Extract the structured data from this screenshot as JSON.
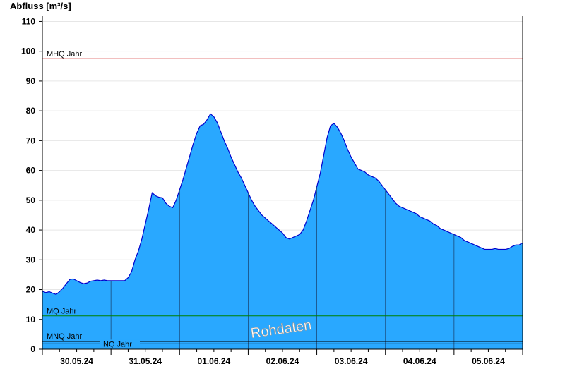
{
  "chart_data": {
    "type": "area",
    "ylabel": "Abfluss [m³/s]",
    "xlabel": "",
    "ylim": [
      0,
      112
    ],
    "y_ticks": [
      0,
      10,
      20,
      30,
      40,
      50,
      60,
      70,
      80,
      90,
      100,
      110
    ],
    "grid": true,
    "x_tick_labels": [
      "30.05.24",
      "31.05.24",
      "01.06.24",
      "02.06.24",
      "03.06.24",
      "04.06.24",
      "05.06.24"
    ],
    "x_range_days": [
      0,
      7
    ],
    "series": [
      {
        "fill_color": "#29a8ff",
        "line_color": "#0000cc",
        "points": [
          [
            0.0,
            19.5
          ],
          [
            0.05,
            19.0
          ],
          [
            0.1,
            19.3
          ],
          [
            0.15,
            18.8
          ],
          [
            0.2,
            18.4
          ],
          [
            0.25,
            19.3
          ],
          [
            0.3,
            20.5
          ],
          [
            0.35,
            22.0
          ],
          [
            0.4,
            23.4
          ],
          [
            0.45,
            23.6
          ],
          [
            0.5,
            23.0
          ],
          [
            0.55,
            22.4
          ],
          [
            0.6,
            22.0
          ],
          [
            0.65,
            22.2
          ],
          [
            0.7,
            22.8
          ],
          [
            0.75,
            23.0
          ],
          [
            0.8,
            23.2
          ],
          [
            0.85,
            23.0
          ],
          [
            0.9,
            23.2
          ],
          [
            0.95,
            23.0
          ],
          [
            1.0,
            23.0
          ],
          [
            1.1,
            23.0
          ],
          [
            1.2,
            23.0
          ],
          [
            1.25,
            24.0
          ],
          [
            1.3,
            26.0
          ],
          [
            1.35,
            30.0
          ],
          [
            1.4,
            33.0
          ],
          [
            1.45,
            37.0
          ],
          [
            1.5,
            42.0
          ],
          [
            1.55,
            47.0
          ],
          [
            1.6,
            52.5
          ],
          [
            1.65,
            51.5
          ],
          [
            1.7,
            51.0
          ],
          [
            1.75,
            50.8
          ],
          [
            1.8,
            49.0
          ],
          [
            1.85,
            48.0
          ],
          [
            1.9,
            47.5
          ],
          [
            1.95,
            50.0
          ],
          [
            2.0,
            53.5
          ],
          [
            2.05,
            57.0
          ],
          [
            2.1,
            61.0
          ],
          [
            2.15,
            65.0
          ],
          [
            2.2,
            69.0
          ],
          [
            2.25,
            72.5
          ],
          [
            2.3,
            75.0
          ],
          [
            2.35,
            75.5
          ],
          [
            2.4,
            77.0
          ],
          [
            2.45,
            79.0
          ],
          [
            2.5,
            78.0
          ],
          [
            2.55,
            76.0
          ],
          [
            2.6,
            73.0
          ],
          [
            2.65,
            70.0
          ],
          [
            2.7,
            67.5
          ],
          [
            2.75,
            64.5
          ],
          [
            2.8,
            62.0
          ],
          [
            2.85,
            59.5
          ],
          [
            2.9,
            57.5
          ],
          [
            2.95,
            55.0
          ],
          [
            3.0,
            52.5
          ],
          [
            3.05,
            50.0
          ],
          [
            3.1,
            48.0
          ],
          [
            3.15,
            46.5
          ],
          [
            3.2,
            45.0
          ],
          [
            3.25,
            44.0
          ],
          [
            3.3,
            43.0
          ],
          [
            3.35,
            42.0
          ],
          [
            3.4,
            41.0
          ],
          [
            3.45,
            40.0
          ],
          [
            3.5,
            39.0
          ],
          [
            3.55,
            37.5
          ],
          [
            3.6,
            37.0
          ],
          [
            3.65,
            37.5
          ],
          [
            3.7,
            38.0
          ],
          [
            3.75,
            38.5
          ],
          [
            3.8,
            40.0
          ],
          [
            3.85,
            43.0
          ],
          [
            3.9,
            46.5
          ],
          [
            3.95,
            50.0
          ],
          [
            4.0,
            54.5
          ],
          [
            4.05,
            59.0
          ],
          [
            4.1,
            65.0
          ],
          [
            4.15,
            71.0
          ],
          [
            4.2,
            75.0
          ],
          [
            4.25,
            75.8
          ],
          [
            4.3,
            74.5
          ],
          [
            4.35,
            72.5
          ],
          [
            4.4,
            70.0
          ],
          [
            4.45,
            67.0
          ],
          [
            4.5,
            64.5
          ],
          [
            4.55,
            62.5
          ],
          [
            4.6,
            60.5
          ],
          [
            4.65,
            60.0
          ],
          [
            4.7,
            59.5
          ],
          [
            4.75,
            58.5
          ],
          [
            4.8,
            58.0
          ],
          [
            4.85,
            57.5
          ],
          [
            4.9,
            56.5
          ],
          [
            4.95,
            55.0
          ],
          [
            5.0,
            53.5
          ],
          [
            5.05,
            52.0
          ],
          [
            5.1,
            50.5
          ],
          [
            5.15,
            49.0
          ],
          [
            5.2,
            48.0
          ],
          [
            5.25,
            47.5
          ],
          [
            5.3,
            47.0
          ],
          [
            5.35,
            46.5
          ],
          [
            5.4,
            46.0
          ],
          [
            5.45,
            45.5
          ],
          [
            5.5,
            44.5
          ],
          [
            5.55,
            44.0
          ],
          [
            5.6,
            43.5
          ],
          [
            5.65,
            43.0
          ],
          [
            5.7,
            42.0
          ],
          [
            5.75,
            41.5
          ],
          [
            5.8,
            40.5
          ],
          [
            5.85,
            40.0
          ],
          [
            5.9,
            39.5
          ],
          [
            5.95,
            39.0
          ],
          [
            6.0,
            38.5
          ],
          [
            6.05,
            38.0
          ],
          [
            6.1,
            37.5
          ],
          [
            6.15,
            36.5
          ],
          [
            6.2,
            36.0
          ],
          [
            6.25,
            35.5
          ],
          [
            6.3,
            35.0
          ],
          [
            6.35,
            34.5
          ],
          [
            6.4,
            34.0
          ],
          [
            6.45,
            33.5
          ],
          [
            6.5,
            33.5
          ],
          [
            6.55,
            33.5
          ],
          [
            6.6,
            33.8
          ],
          [
            6.65,
            33.5
          ],
          [
            6.7,
            33.5
          ],
          [
            6.75,
            33.5
          ],
          [
            6.8,
            33.8
          ],
          [
            6.85,
            34.5
          ],
          [
            6.9,
            35.0
          ],
          [
            6.95,
            35.0
          ],
          [
            6.98,
            35.5
          ],
          [
            7.0,
            35.5
          ]
        ]
      }
    ],
    "reference_lines": [
      {
        "name": "MHQ Jahr",
        "value": 97.5,
        "color": "#cc0000"
      },
      {
        "name": "MQ Jahr",
        "value": 11.2,
        "color": "#008000"
      },
      {
        "name": "MNQ Jahr",
        "value": 2.6,
        "color": "#000000"
      },
      {
        "name": "NQ Jahr",
        "value": 1.8,
        "color": "#000000"
      }
    ],
    "annotations": [
      "Rohdaten"
    ]
  }
}
